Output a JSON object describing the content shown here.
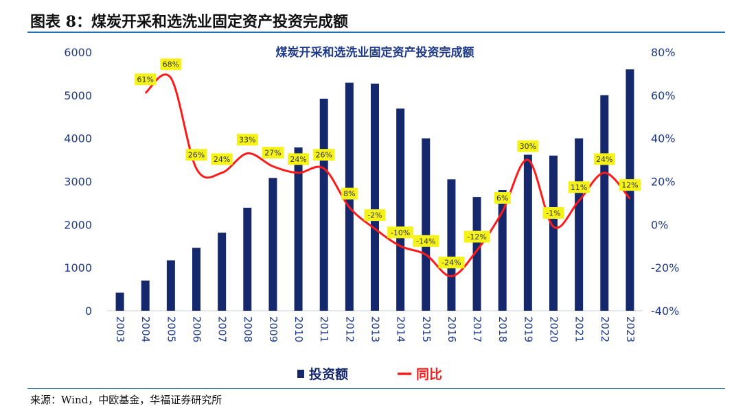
{
  "figure_heading": "图表 8：煤炭开采和选洗业固定资产投资完成额",
  "source_note": "来源：Wind，中欧基金，华福证券研究所",
  "colors": {
    "bar": "#14286b",
    "line": "#ff1a1a",
    "label_bg": "#f5f21a",
    "title": "#1e3a8a",
    "axis_text": "#1e3a8a",
    "rule": "#1f6fb5"
  },
  "chart_data": {
    "type": "bar",
    "title": "煤炭开采和选洗业固定资产投资完成额",
    "categories": [
      "2003",
      "2004",
      "2005",
      "2006",
      "2007",
      "2008",
      "2009",
      "2010",
      "2011",
      "2012",
      "2013",
      "2014",
      "2015",
      "2016",
      "2017",
      "2018",
      "2019",
      "2020",
      "2021",
      "2022",
      "2023"
    ],
    "series": [
      {
        "name": "投资额",
        "type": "bar",
        "axis": "left",
        "values": [
          420,
          700,
          1170,
          1460,
          1810,
          2390,
          3080,
          3790,
          4920,
          5290,
          5270,
          4690,
          4000,
          3050,
          2640,
          2800,
          3620,
          3600,
          4000,
          5000,
          5600
        ]
      },
      {
        "name": "同比",
        "type": "line",
        "axis": "right",
        "values": [
          null,
          61,
          68,
          26,
          24,
          33,
          27,
          24,
          26,
          8,
          -2,
          -10,
          -14,
          -24,
          -12,
          6,
          30,
          -1,
          11,
          24,
          12
        ],
        "labels": [
          null,
          "61%",
          "68%",
          "26%",
          "24%",
          "33%",
          "27%",
          "24%",
          "26%",
          "8%",
          "-2%",
          "-10%",
          "-14%",
          "-24%",
          "-12%",
          "6%",
          "30%",
          "-1%",
          "11%",
          "24%",
          "12%"
        ]
      }
    ],
    "y_left": {
      "min": 0,
      "max": 6000,
      "ticks": [
        "0",
        "1000",
        "2000",
        "3000",
        "4000",
        "5000",
        "6000"
      ]
    },
    "y_right": {
      "min": -40,
      "max": 80,
      "ticks": [
        "-40%",
        "-20%",
        "0%",
        "20%",
        "40%",
        "60%",
        "80%"
      ]
    },
    "grid": false,
    "legend": {
      "position": "bottom",
      "entries": [
        "投资额",
        "同比"
      ]
    }
  }
}
